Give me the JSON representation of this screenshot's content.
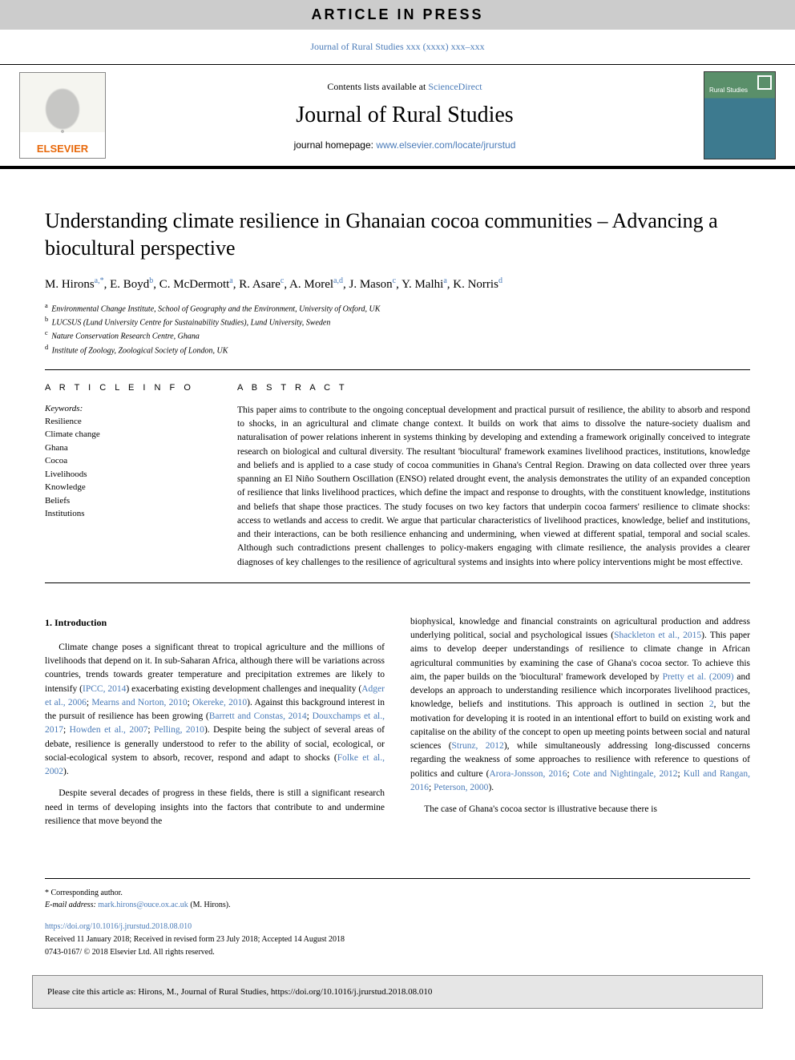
{
  "banner": "ARTICLE IN PRESS",
  "journal_ref": "Journal of Rural Studies xxx (xxxx) xxx–xxx",
  "masthead": {
    "publisher": "ELSEVIER",
    "contents_prefix": "Contents lists available at ",
    "contents_link": "ScienceDirect",
    "journal_title": "Journal of Rural Studies",
    "homepage_prefix": "journal homepage: ",
    "homepage_link": "www.elsevier.com/locate/jrurstud"
  },
  "article": {
    "title": "Understanding climate resilience in Ghanaian cocoa communities – Advancing a biocultural perspective",
    "authors_html": "M. Hirons<sup>a,*</sup>, E. Boyd<sup>b</sup>, C. McDermott<sup>a</sup>, R. Asare<sup>c</sup>, A. Morel<sup>a,d</sup>, J. Mason<sup>c</sup>, Y. Malhi<sup>a</sup>, K. Norris<sup>d</sup>",
    "affiliations": [
      {
        "sup": "a",
        "text": "Environmental Change Institute, School of Geography and the Environment, University of Oxford, UK"
      },
      {
        "sup": "b",
        "text": "LUCSUS (Lund University Centre for Sustainability Studies), Lund University, Sweden"
      },
      {
        "sup": "c",
        "text": "Nature Conservation Research Centre, Ghana"
      },
      {
        "sup": "d",
        "text": "Institute of Zoology, Zoological Society of London, UK"
      }
    ]
  },
  "info": {
    "heading": "A R T I C L E  I N F O",
    "keywords_label": "Keywords:",
    "keywords": [
      "Resilience",
      "Climate change",
      "Ghana",
      "Cocoa",
      "Livelihoods",
      "Knowledge",
      "Beliefs",
      "Institutions"
    ]
  },
  "abstract": {
    "heading": "A B S T R A C T",
    "text": "This paper aims to contribute to the ongoing conceptual development and practical pursuit of resilience, the ability to absorb and respond to shocks, in an agricultural and climate change context. It builds on work that aims to dissolve the nature-society dualism and naturalisation of power relations inherent in systems thinking by developing and extending a framework originally conceived to integrate research on biological and cultural diversity. The resultant 'biocultural' framework examines livelihood practices, institutions, knowledge and beliefs and is applied to a case study of cocoa communities in Ghana's Central Region. Drawing on data collected over three years spanning an El Niño Southern Oscillation (ENSO) related drought event, the analysis demonstrates the utility of an expanded conception of resilience that links livelihood practices, which define the impact and response to droughts, with the constituent knowledge, institutions and beliefs that shape those practices. The study focuses on two key factors that underpin cocoa farmers' resilience to climate shocks: access to wetlands and access to credit. We argue that particular characteristics of livelihood practices, knowledge, belief and institutions, and their interactions, can be both resilience enhancing and undermining, when viewed at different spatial, temporal and social scales. Although such contradictions present challenges to policy-makers engaging with climate resilience, the analysis provides a clearer diagnoses of key challenges to the resilience of agricultural systems and insights into where policy interventions might be most effective."
  },
  "section": {
    "heading": "1. Introduction",
    "col1_p1_pre": "Climate change poses a significant threat to tropical agriculture and the millions of livelihoods that depend on it. In sub-Saharan Africa, although there will be variations across countries, trends towards greater temperature and precipitation extremes are likely to intensify (",
    "cite_ipcc": "IPCC, 2014",
    "col1_p1_mid1": ") exacerbating existing development challenges and inequality (",
    "cite_adger": "Adger et al., 2006",
    "sep1": "; ",
    "cite_mearns": "Mearns and Norton, 2010",
    "sep2": "; ",
    "cite_okereke": "Okereke, 2010",
    "col1_p1_mid2": "). Against this background interest in the pursuit of resilience has been growing (",
    "cite_barrett": "Barrett and Constas, 2014",
    "sep3": "; ",
    "cite_douxchamps": "Douxchamps et al., 2017",
    "sep4": "; ",
    "cite_howden": "Howden et al., 2007",
    "sep5": "; ",
    "cite_pelling": "Pelling, 2010",
    "col1_p1_mid3": "). Despite being the subject of several areas of debate, resilience is generally understood to refer to the ability of social, ecological, or social-ecological system to absorb, recover, respond and adapt to shocks (",
    "cite_folke": "Folke et al., 2002",
    "col1_p1_end": ").",
    "col1_p2": "Despite several decades of progress in these fields, there is still a significant research need in terms of developing insights into the factors that contribute to and undermine resilience that move beyond the",
    "col2_p1_pre": "biophysical, knowledge and financial constraints on agricultural production and address underlying political, social and psychological issues (",
    "cite_shackleton": "Shackleton et al., 2015",
    "col2_p1_mid1": "). This paper aims to develop deeper understandings of resilience to climate change in African agricultural communities by examining the case of Ghana's cocoa sector. To achieve this aim, the paper builds on the 'biocultural' framework developed by ",
    "cite_pretty": "Pretty et al. (2009)",
    "col2_p1_mid2": " and develops an approach to understanding resilience which incorporates livelihood practices, knowledge, beliefs and institutions. This approach is outlined in section ",
    "cite_section2": "2",
    "col2_p1_mid3": ", but the motivation for developing it is rooted in an intentional effort to build on existing work and capitalise on the ability of the concept to open up meeting points between social and natural sciences (",
    "cite_strunz": "Strunz, 2012",
    "col2_p1_mid4": "), while simultaneously addressing long-discussed concerns regarding the weakness of some approaches to resilience with reference to questions of politics and culture (",
    "cite_arora": "Arora-Jonsson, 2016",
    "sep6": "; ",
    "cite_cote": "Cote and Nightingale, 2012",
    "sep7": "; ",
    "cite_kull": "Kull and Rangan, 2016",
    "sep8": "; ",
    "cite_peterson": "Peterson, 2000",
    "col2_p1_end": ").",
    "col2_p2": "The case of Ghana's cocoa sector is illustrative because there is"
  },
  "footer": {
    "corresponding": "* Corresponding author.",
    "email_label": "E-mail address: ",
    "email": "mark.hirons@ouce.ox.ac.uk",
    "email_suffix": " (M. Hirons).",
    "doi": "https://doi.org/10.1016/j.jrurstud.2018.08.010",
    "history": "Received 11 January 2018; Received in revised form 23 July 2018; Accepted 14 August 2018",
    "issn_copyright": "0743-0167/ © 2018 Elsevier Ltd. All rights reserved."
  },
  "citebox": "Please cite this article as: Hirons, M., Journal of Rural Studies, https://doi.org/10.1016/j.jrurstud.2018.08.010",
  "colors": {
    "link": "#4a7bb8",
    "banner_bg": "#cccccc",
    "publisher_accent": "#e8690b",
    "citebox_bg": "#e6e6e6"
  },
  "typography": {
    "title_fontsize": 26,
    "journal_title_fontsize": 28,
    "body_fontsize": 11.5,
    "abstract_fontsize": 11.5,
    "affiliation_fontsize": 10,
    "footer_fontsize": 10
  }
}
